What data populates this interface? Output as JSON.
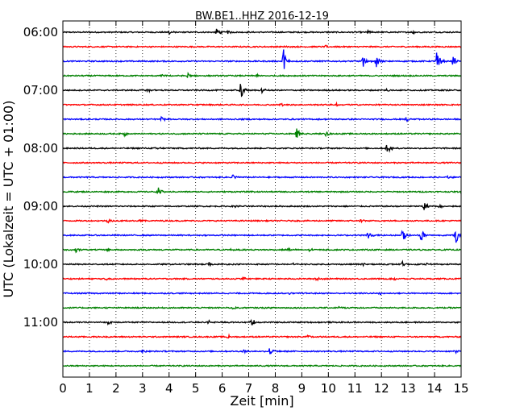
{
  "chart_data": {
    "type": "line",
    "title": "BW.BE1..HHZ 2016-12-19",
    "xlabel": "Zeit  [min]",
    "ylabel": "UTC (Lokalzeit = UTC + 01:00)",
    "xlim": [
      0,
      15
    ],
    "x_ticks": [
      "0",
      "1",
      "2",
      "3",
      "4",
      "5",
      "6",
      "7",
      "8",
      "9",
      "10",
      "11",
      "12",
      "13",
      "14",
      "15"
    ],
    "y_ticks": [
      {
        "label": "06:00",
        "trace": 0
      },
      {
        "label": "07:00",
        "trace": 4
      },
      {
        "label": "08:00",
        "trace": 8
      },
      {
        "label": "09:00",
        "trace": 12
      },
      {
        "label": "10:00",
        "trace": 16
      },
      {
        "label": "11:00",
        "trace": 20
      }
    ],
    "grid": true,
    "trace_interval_min": 15,
    "colors": [
      "#000000",
      "#ff0000",
      "#0000ff",
      "#008000"
    ],
    "noise_amplitude": 0.06,
    "traces": [
      {
        "start": "06:00",
        "color": "#000000",
        "events": [
          [
            4,
            0.25
          ],
          [
            5.8,
            0.5
          ],
          [
            6.2,
            0.2
          ],
          [
            11.5,
            0.2
          ],
          [
            13.2,
            0.2
          ]
        ]
      },
      {
        "start": "06:15",
        "color": "#ff0000",
        "events": [
          [
            8.3,
            0.2
          ],
          [
            9.9,
            0.2
          ]
        ]
      },
      {
        "start": "06:30",
        "color": "#0000ff",
        "events": [
          [
            8.3,
            1.5
          ],
          [
            11.3,
            0.6
          ],
          [
            11.8,
            0.9
          ],
          [
            14.1,
            1.5
          ],
          [
            14.7,
            0.6
          ]
        ]
      },
      {
        "start": "06:45",
        "color": "#008000",
        "events": [
          [
            3.7,
            0.2
          ],
          [
            4.7,
            0.3
          ],
          [
            7.3,
            0.2
          ]
        ]
      },
      {
        "start": "07:00",
        "color": "#000000",
        "events": [
          [
            3.2,
            0.25
          ],
          [
            6.7,
            1.0
          ],
          [
            7.5,
            0.3
          ],
          [
            12.2,
            0.2
          ]
        ]
      },
      {
        "start": "07:15",
        "color": "#ff0000",
        "events": [
          [
            8.2,
            0.2
          ],
          [
            10.3,
            0.2
          ]
        ]
      },
      {
        "start": "07:30",
        "color": "#0000ff",
        "events": [
          [
            3.7,
            0.3
          ],
          [
            12.9,
            0.3
          ]
        ]
      },
      {
        "start": "07:45",
        "color": "#008000",
        "events": [
          [
            2.3,
            0.3
          ],
          [
            8.8,
            0.6
          ],
          [
            9.9,
            0.3
          ]
        ]
      },
      {
        "start": "08:00",
        "color": "#000000",
        "events": [
          [
            3.5,
            0.3
          ],
          [
            12.2,
            0.7
          ]
        ]
      },
      {
        "start": "08:15",
        "color": "#ff0000",
        "events": []
      },
      {
        "start": "08:30",
        "color": "#0000ff",
        "events": [
          [
            6.4,
            0.4
          ],
          [
            14.5,
            0.15
          ]
        ]
      },
      {
        "start": "08:45",
        "color": "#008000",
        "events": [
          [
            3.6,
            0.5
          ],
          [
            7.1,
            0.2
          ],
          [
            15,
            0.2
          ]
        ]
      },
      {
        "start": "09:00",
        "color": "#000000",
        "events": [
          [
            6.5,
            0.2
          ],
          [
            13.6,
            0.6
          ],
          [
            14.2,
            0.2
          ]
        ]
      },
      {
        "start": "09:15",
        "color": "#ff0000",
        "events": [
          [
            1.7,
            0.3
          ],
          [
            2.9,
            0.2
          ],
          [
            11.2,
            0.2
          ]
        ]
      },
      {
        "start": "09:30",
        "color": "#0000ff",
        "events": [
          [
            11.5,
            0.5
          ],
          [
            12.8,
            0.9
          ],
          [
            13.5,
            0.8
          ],
          [
            14.8,
            1.3
          ]
        ]
      },
      {
        "start": "09:45",
        "color": "#008000",
        "events": [
          [
            0.5,
            0.4
          ],
          [
            1.7,
            0.2
          ],
          [
            6.3,
            0.25
          ],
          [
            8.5,
            0.25
          ],
          [
            9.3,
            0.2
          ]
        ]
      },
      {
        "start": "10:00",
        "color": "#000000",
        "events": [
          [
            5.5,
            0.2
          ],
          [
            8.7,
            0.2
          ],
          [
            11.3,
            0.2
          ],
          [
            12.8,
            0.3
          ],
          [
            13.7,
            0.2
          ]
        ]
      },
      {
        "start": "10:15",
        "color": "#ff0000",
        "events": [
          [
            1.6,
            0.2
          ],
          [
            6.8,
            0.2
          ],
          [
            9.5,
            0.3
          ],
          [
            12.5,
            0.2
          ]
        ]
      },
      {
        "start": "10:30",
        "color": "#0000ff",
        "events": [
          [
            8.5,
            0.2
          ],
          [
            11.9,
            0.2
          ]
        ]
      },
      {
        "start": "10:45",
        "color": "#008000",
        "events": [
          [
            6.4,
            0.2
          ],
          [
            10.4,
            0.15
          ]
        ]
      },
      {
        "start": "11:00",
        "color": "#000000",
        "events": [
          [
            1.7,
            0.2
          ],
          [
            5.5,
            0.25
          ],
          [
            7.1,
            0.6
          ]
        ]
      },
      {
        "start": "11:15",
        "color": "#ff0000",
        "events": [
          [
            6.2,
            0.25
          ],
          [
            9.2,
            0.3
          ]
        ]
      },
      {
        "start": "11:30",
        "color": "#0000ff",
        "events": [
          [
            3.0,
            0.2
          ],
          [
            6.8,
            0.25
          ],
          [
            7.8,
            0.6
          ],
          [
            14.8,
            0.2
          ]
        ]
      },
      {
        "start": "11:45",
        "color": "#008000",
        "events": []
      }
    ]
  }
}
